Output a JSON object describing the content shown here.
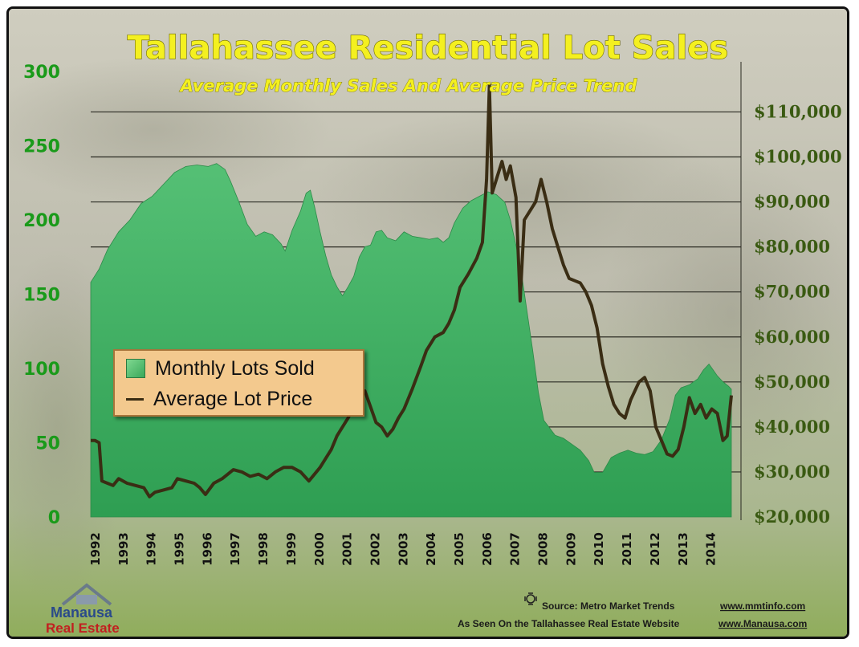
{
  "chart_data": {
    "type": "area",
    "title": "Tallahassee Residential Lot Sales",
    "subtitle": "Average Monthly Sales And Average Price Trend",
    "x_range": [
      1992,
      2014.9
    ],
    "x_tick_labels": [
      "1992",
      "1993",
      "1994",
      "1995",
      "1996",
      "1997",
      "1998",
      "1999",
      "2000",
      "2001",
      "2002",
      "2003",
      "2004",
      "2005",
      "2006",
      "2007",
      "2008",
      "2009",
      "2010",
      "2011",
      "2012",
      "2013",
      "2014"
    ],
    "y_left": {
      "ylim": [
        0,
        300
      ],
      "tick_labels": [
        "0",
        "50",
        "100",
        "150",
        "200",
        "250",
        "300"
      ]
    },
    "y_right": {
      "ylim": [
        20000,
        119000
      ],
      "tick_labels": [
        "$20,000",
        "$30,000",
        "$40,000",
        "$50,000",
        "$60,000",
        "$70,000",
        "$80,000",
        "$90,000",
        "$100,000",
        "$110,000"
      ]
    },
    "grid": "horizontal, right axis",
    "legend_position": "left-middle",
    "series": [
      {
        "name": "Monthly Lots Sold",
        "axis": "left",
        "style": "area",
        "color": "#3cb064",
        "points": [
          [
            1992.0,
            158
          ],
          [
            1992.3,
            167
          ],
          [
            1992.6,
            180
          ],
          [
            1993.0,
            192
          ],
          [
            1993.4,
            200
          ],
          [
            1993.8,
            211
          ],
          [
            1994.2,
            216
          ],
          [
            1994.6,
            224
          ],
          [
            1995.0,
            232
          ],
          [
            1995.4,
            236
          ],
          [
            1995.8,
            237
          ],
          [
            1996.2,
            236
          ],
          [
            1996.5,
            238
          ],
          [
            1996.8,
            234
          ],
          [
            1997.0,
            226
          ],
          [
            1997.3,
            212
          ],
          [
            1997.6,
            197
          ],
          [
            1997.9,
            189
          ],
          [
            1998.2,
            192
          ],
          [
            1998.5,
            190
          ],
          [
            1998.8,
            184
          ],
          [
            1998.95,
            179
          ],
          [
            1999.2,
            193
          ],
          [
            1999.5,
            206
          ],
          [
            1999.7,
            218
          ],
          [
            1999.85,
            220
          ],
          [
            2000.0,
            209
          ],
          [
            2000.2,
            192
          ],
          [
            2000.4,
            176
          ],
          [
            2000.6,
            163
          ],
          [
            2000.8,
            155
          ],
          [
            2001.0,
            149
          ],
          [
            2001.2,
            155
          ],
          [
            2001.4,
            162
          ],
          [
            2001.6,
            175
          ],
          [
            2001.8,
            182
          ],
          [
            2002.0,
            183
          ],
          [
            2002.2,
            192
          ],
          [
            2002.4,
            193
          ],
          [
            2002.6,
            188
          ],
          [
            2002.9,
            186
          ],
          [
            2003.2,
            192
          ],
          [
            2003.5,
            189
          ],
          [
            2003.8,
            188
          ],
          [
            2004.1,
            187
          ],
          [
            2004.4,
            188
          ],
          [
            2004.6,
            185
          ],
          [
            2004.8,
            188
          ],
          [
            2005.0,
            198
          ],
          [
            2005.3,
            208
          ],
          [
            2005.6,
            213
          ],
          [
            2005.9,
            216
          ],
          [
            2006.2,
            219
          ],
          [
            2006.5,
            217
          ],
          [
            2006.8,
            212
          ],
          [
            2007.0,
            200
          ],
          [
            2007.2,
            183
          ],
          [
            2007.4,
            164
          ],
          [
            2007.6,
            138
          ],
          [
            2007.8,
            112
          ],
          [
            2008.0,
            84
          ],
          [
            2008.2,
            65
          ],
          [
            2008.4,
            60
          ],
          [
            2008.6,
            55
          ],
          [
            2008.9,
            53
          ],
          [
            2009.2,
            49
          ],
          [
            2009.5,
            45
          ],
          [
            2009.8,
            38
          ],
          [
            2010.0,
            30
          ],
          [
            2010.3,
            30
          ],
          [
            2010.6,
            40
          ],
          [
            2010.9,
            43
          ],
          [
            2011.2,
            45
          ],
          [
            2011.5,
            43
          ],
          [
            2011.8,
            42
          ],
          [
            2012.1,
            44
          ],
          [
            2012.4,
            52
          ],
          [
            2012.7,
            66
          ],
          [
            2012.9,
            82
          ],
          [
            2013.1,
            87
          ],
          [
            2013.4,
            89
          ],
          [
            2013.7,
            93
          ],
          [
            2013.9,
            99
          ],
          [
            2014.1,
            103
          ],
          [
            2014.4,
            95
          ],
          [
            2014.6,
            91
          ],
          [
            2014.8,
            88
          ],
          [
            2014.9,
            86
          ]
        ]
      },
      {
        "name": "Average Lot Price",
        "axis": "right",
        "style": "line",
        "color": "#3a2d14",
        "points": [
          [
            1992.0,
            37000
          ],
          [
            1992.15,
            37000
          ],
          [
            1992.3,
            36500
          ],
          [
            1992.4,
            28000
          ],
          [
            1992.6,
            27500
          ],
          [
            1992.8,
            27000
          ],
          [
            1993.0,
            28500
          ],
          [
            1993.3,
            27500
          ],
          [
            1993.6,
            27000
          ],
          [
            1993.9,
            26500
          ],
          [
            1994.1,
            24500
          ],
          [
            1994.3,
            25500
          ],
          [
            1994.6,
            26000
          ],
          [
            1994.9,
            26500
          ],
          [
            1995.1,
            28500
          ],
          [
            1995.4,
            28000
          ],
          [
            1995.7,
            27500
          ],
          [
            1995.9,
            26500
          ],
          [
            1996.1,
            25000
          ],
          [
            1996.4,
            27500
          ],
          [
            1996.7,
            28500
          ],
          [
            1996.9,
            29500
          ],
          [
            1997.1,
            30500
          ],
          [
            1997.4,
            30000
          ],
          [
            1997.7,
            29000
          ],
          [
            1998.0,
            29500
          ],
          [
            1998.3,
            28500
          ],
          [
            1998.6,
            30000
          ],
          [
            1998.9,
            31000
          ],
          [
            1999.2,
            31000
          ],
          [
            1999.5,
            30000
          ],
          [
            1999.8,
            28000
          ],
          [
            2000.0,
            29500
          ],
          [
            2000.2,
            31000
          ],
          [
            2000.4,
            33000
          ],
          [
            2000.6,
            35000
          ],
          [
            2000.8,
            38000
          ],
          [
            2001.0,
            40000
          ],
          [
            2001.2,
            42000
          ],
          [
            2001.4,
            44500
          ],
          [
            2001.6,
            47500
          ],
          [
            2001.8,
            48000
          ],
          [
            2002.0,
            44500
          ],
          [
            2002.2,
            41000
          ],
          [
            2002.4,
            40000
          ],
          [
            2002.6,
            38000
          ],
          [
            2002.8,
            39500
          ],
          [
            2003.0,
            42000
          ],
          [
            2003.2,
            44000
          ],
          [
            2003.5,
            48500
          ],
          [
            2003.8,
            53500
          ],
          [
            2004.0,
            57000
          ],
          [
            2004.3,
            60000
          ],
          [
            2004.6,
            61000
          ],
          [
            2004.8,
            63000
          ],
          [
            2005.0,
            66000
          ],
          [
            2005.2,
            71000
          ],
          [
            2005.5,
            74000
          ],
          [
            2005.8,
            77500
          ],
          [
            2006.0,
            81000
          ],
          [
            2006.15,
            95000
          ],
          [
            2006.25,
            116000
          ],
          [
            2006.35,
            92000
          ],
          [
            2006.5,
            95000
          ],
          [
            2006.7,
            99000
          ],
          [
            2006.85,
            95000
          ],
          [
            2007.0,
            98000
          ],
          [
            2007.2,
            91000
          ],
          [
            2007.35,
            68000
          ],
          [
            2007.5,
            86000
          ],
          [
            2007.7,
            88000
          ],
          [
            2007.9,
            90000
          ],
          [
            2008.1,
            95000
          ],
          [
            2008.3,
            90000
          ],
          [
            2008.5,
            84000
          ],
          [
            2008.7,
            80000
          ],
          [
            2008.9,
            76000
          ],
          [
            2009.1,
            73000
          ],
          [
            2009.3,
            72500
          ],
          [
            2009.5,
            72000
          ],
          [
            2009.7,
            70000
          ],
          [
            2009.9,
            67000
          ],
          [
            2010.1,
            62000
          ],
          [
            2010.3,
            54000
          ],
          [
            2010.5,
            49000
          ],
          [
            2010.7,
            45000
          ],
          [
            2010.9,
            43000
          ],
          [
            2011.1,
            42000
          ],
          [
            2011.3,
            46000
          ],
          [
            2011.6,
            50000
          ],
          [
            2011.8,
            51000
          ],
          [
            2012.0,
            48000
          ],
          [
            2012.2,
            40000
          ],
          [
            2012.4,
            37000
          ],
          [
            2012.6,
            34000
          ],
          [
            2012.8,
            33500
          ],
          [
            2013.0,
            35000
          ],
          [
            2013.2,
            40000
          ],
          [
            2013.4,
            46500
          ],
          [
            2013.6,
            43000
          ],
          [
            2013.8,
            45000
          ],
          [
            2014.0,
            42000
          ],
          [
            2014.2,
            44000
          ],
          [
            2014.4,
            43000
          ],
          [
            2014.6,
            37000
          ],
          [
            2014.75,
            38000
          ],
          [
            2014.9,
            47000
          ]
        ]
      }
    ]
  },
  "legend": {
    "sales_label": "Monthly Lots Sold",
    "price_label": "Average Lot Price"
  },
  "footer": {
    "source_label": "Source:  Metro Market Trends",
    "source_url": "www.mmtinfo.com",
    "seen_label": "As Seen On the Tallahassee Real Estate Website",
    "seen_url": "www.Manausa.com"
  },
  "logo": {
    "line1": "Manausa",
    "line2": "Real Estate"
  },
  "colors": {
    "background_top": "#c9c7b8",
    "background_bottom": "#9ab36a",
    "area_fill": "#3cb064",
    "price_line": "#3a2d14",
    "title_fill": "#f4f020",
    "left_axis_text": "#1a9a1a",
    "right_axis_text": "#3a5a12"
  }
}
